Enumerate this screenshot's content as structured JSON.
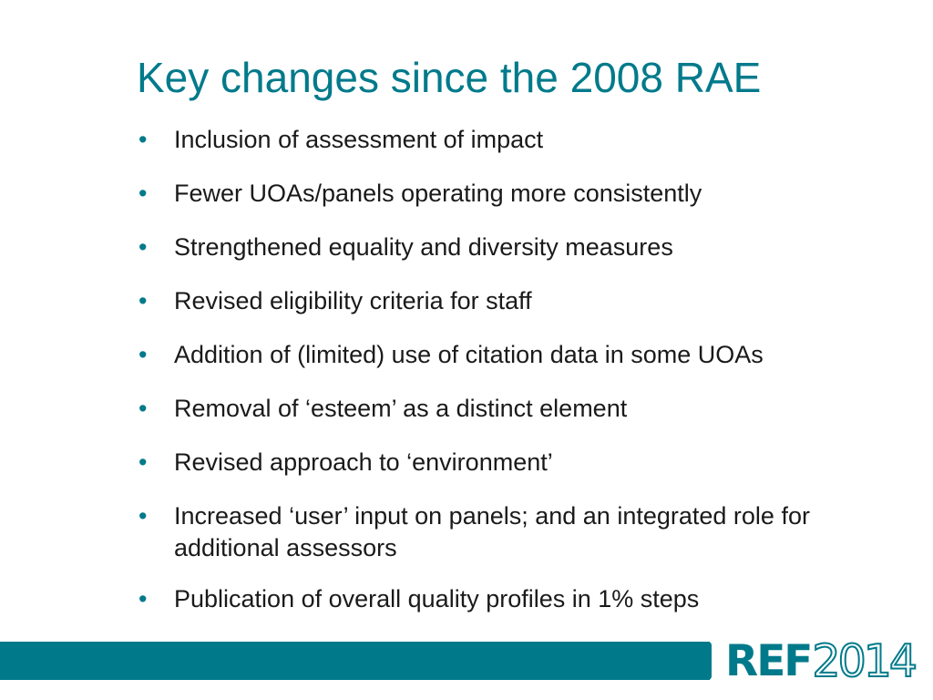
{
  "slide": {
    "title": "Key changes since the 2008 RAE",
    "bullets": [
      "Inclusion of assessment of impact",
      "Fewer UOAs/panels operating more consistently",
      "Strengthened equality and diversity measures",
      "Revised eligibility criteria for staff",
      "Addition of (limited) use of citation data in some UOAs",
      "Removal of ‘esteem’ as a distinct element",
      "Revised approach to ‘environment’",
      "Increased ‘user’ input on panels; and an integrated role for additional assessors",
      "Publication of overall quality profiles in 1% steps"
    ]
  },
  "logo": {
    "ref": "REF",
    "year": "2014"
  },
  "colors": {
    "accent": "#007a8b",
    "text": "#1a1a1a",
    "background": "#ffffff"
  },
  "icons": {
    "bullet": "bullet-dot-icon"
  }
}
